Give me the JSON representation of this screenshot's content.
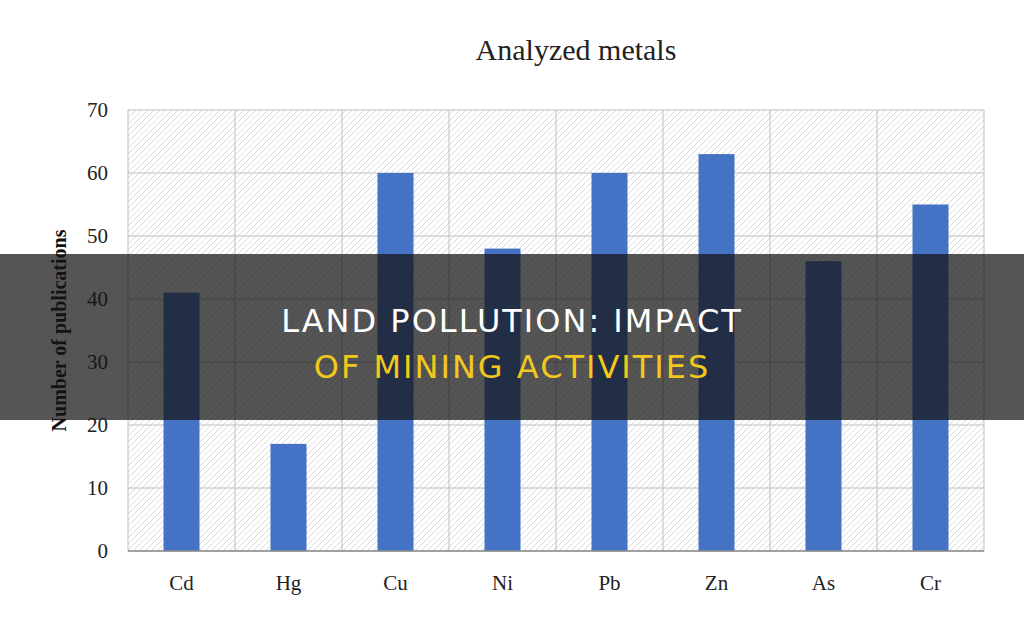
{
  "chart_data": {
    "type": "bar",
    "title": "Analyzed metals",
    "y_label": "Number of publications",
    "categories": [
      "Cd",
      "Hg",
      "Cu",
      "Ni",
      "Pb",
      "Zn",
      "As",
      "Cr"
    ],
    "values": [
      41,
      17,
      60,
      48,
      60,
      63,
      46,
      55
    ],
    "color": "#4472c4",
    "ylim": [
      0,
      70
    ],
    "yticks": [
      0,
      10,
      20,
      30,
      40,
      50,
      60,
      70
    ],
    "grid": true
  },
  "banner": {
    "lines": [
      "LAND POLLUTION: IMPACT",
      "OF MINING ACTIVITIES"
    ]
  }
}
